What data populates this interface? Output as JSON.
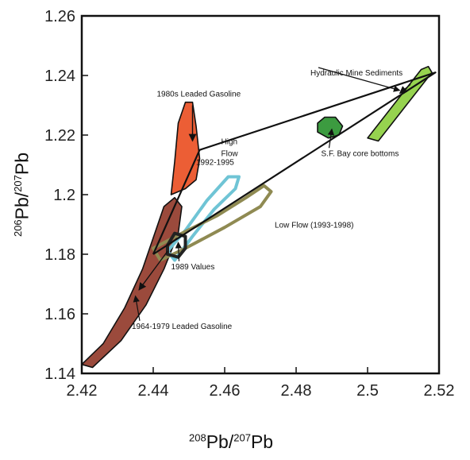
{
  "chart_data": {
    "type": "scatter",
    "xlabel": {
      "sup1": "208",
      "base1": "Pb/",
      "sup2": "207",
      "base2": "Pb"
    },
    "ylabel": {
      "sup1": "206",
      "base1": "Pb/",
      "sup2": "207",
      "base2": "Pb"
    },
    "xlim": [
      2.42,
      2.52
    ],
    "ylim": [
      1.14,
      1.26
    ],
    "xticks": [
      "2.42",
      "2.44",
      "2.46",
      "2.48",
      "2.5",
      "2.52"
    ],
    "yticks": [
      "1.14",
      "1.16",
      "1.18",
      "1.2",
      "1.22",
      "1.24",
      "1.26"
    ],
    "grid": false,
    "regions": [
      {
        "name": "1964-1979 Leaded Gasoline",
        "color": "#9b4a3c",
        "fill": true,
        "outline": [
          [
            2.42,
            1.143
          ],
          [
            2.426,
            1.15
          ],
          [
            2.432,
            1.162
          ],
          [
            2.437,
            1.175
          ],
          [
            2.441,
            1.189
          ],
          [
            2.443,
            1.196
          ],
          [
            2.446,
            1.199
          ],
          [
            2.448,
            1.196
          ],
          [
            2.447,
            1.187
          ],
          [
            2.443,
            1.175
          ],
          [
            2.438,
            1.163
          ],
          [
            2.431,
            1.151
          ],
          [
            2.423,
            1.142
          ],
          [
            2.42,
            1.143
          ]
        ]
      },
      {
        "name": "1980s Leaded Gasoline",
        "color": "#ec5e35",
        "fill": true,
        "outline": [
          [
            2.445,
            1.2
          ],
          [
            2.446,
            1.211
          ],
          [
            2.447,
            1.224
          ],
          [
            2.449,
            1.231
          ],
          [
            2.451,
            1.231
          ],
          [
            2.452,
            1.223
          ],
          [
            2.453,
            1.212
          ],
          [
            2.452,
            1.205
          ],
          [
            2.449,
            1.202
          ],
          [
            2.445,
            1.2
          ]
        ]
      },
      {
        "name": "S.F. Bay core bottoms",
        "color": "#3c9b40",
        "fill": true,
        "outline": [
          [
            2.486,
            1.224
          ],
          [
            2.488,
            1.226
          ],
          [
            2.491,
            1.226
          ],
          [
            2.493,
            1.223
          ],
          [
            2.492,
            1.22
          ],
          [
            2.489,
            1.219
          ],
          [
            2.486,
            1.221
          ],
          [
            2.486,
            1.224
          ]
        ]
      },
      {
        "name": "Hydraulic Mine Sediments",
        "color": "#96d34f",
        "fill": true,
        "outline": [
          [
            2.5,
            1.219
          ],
          [
            2.515,
            1.242
          ],
          [
            2.517,
            1.243
          ],
          [
            2.518,
            1.241
          ],
          [
            2.503,
            1.218
          ],
          [
            2.5,
            1.219
          ]
        ]
      },
      {
        "name": "High Flow 1992-1995",
        "color": "#6fc4d5",
        "fill": false,
        "outline": [
          [
            2.444,
            1.181
          ],
          [
            2.449,
            1.188
          ],
          [
            2.455,
            1.198
          ],
          [
            2.461,
            1.206
          ],
          [
            2.464,
            1.206
          ],
          [
            2.463,
            1.202
          ],
          [
            2.457,
            1.195
          ],
          [
            2.451,
            1.186
          ],
          [
            2.446,
            1.178
          ],
          [
            2.444,
            1.181
          ]
        ]
      },
      {
        "name": "Low Flow (1993-1998)",
        "color": "#8f8a52",
        "fill": false,
        "outline": [
          [
            2.44,
            1.182
          ],
          [
            2.448,
            1.187
          ],
          [
            2.458,
            1.193
          ],
          [
            2.466,
            1.199
          ],
          [
            2.471,
            1.203
          ],
          [
            2.473,
            1.201
          ],
          [
            2.47,
            1.196
          ],
          [
            2.46,
            1.189
          ],
          [
            2.449,
            1.182
          ],
          [
            2.442,
            1.178
          ],
          [
            2.44,
            1.182
          ]
        ]
      },
      {
        "name": "1989 Values",
        "color": "#222222",
        "fill": false,
        "outline": [
          [
            2.444,
            1.183
          ],
          [
            2.446,
            1.187
          ],
          [
            2.449,
            1.186
          ],
          [
            2.449,
            1.182
          ],
          [
            2.447,
            1.179
          ],
          [
            2.444,
            1.18
          ],
          [
            2.444,
            1.183
          ]
        ]
      }
    ],
    "mixing_lines": [
      [
        [
          2.44,
          1.18
        ],
        [
          2.453,
          1.215
        ],
        [
          2.519,
          1.241
        ],
        [
          2.44,
          1.18
        ]
      ]
    ],
    "trend_arrows": [
      [
        [
          2.451,
          1.23
        ],
        [
          2.451,
          1.218
        ]
      ],
      [
        [
          2.444,
          1.181
        ],
        [
          2.436,
          1.168
        ]
      ],
      [
        [
          2.512,
          1.237
        ],
        [
          2.509,
          1.234
        ]
      ]
    ],
    "annotations": [
      {
        "text": "1980s Leaded Gasoline",
        "pos": [
          2.441,
          1.233
        ],
        "target": null
      },
      {
        "text": "High",
        "pos": [
          2.459,
          1.217
        ],
        "target": null
      },
      {
        "text": "Flow",
        "pos": [
          2.459,
          1.213
        ],
        "target": null
      },
      {
        "text": "1992-1995",
        "pos": [
          2.452,
          1.21
        ],
        "target": null
      },
      {
        "text": "Hydraulic Mine Sediments",
        "pos": [
          2.484,
          1.24
        ],
        "target": [
          2.509,
          1.235
        ]
      },
      {
        "text": "S.F. Bay core bottoms",
        "pos": [
          2.487,
          1.213
        ],
        "target": [
          2.49,
          1.222
        ]
      },
      {
        "text": "Low Flow (1993-1998)",
        "pos": [
          2.474,
          1.189
        ],
        "target": null
      },
      {
        "text": "1989 Values",
        "pos": [
          2.445,
          1.175
        ],
        "target": [
          2.447,
          1.184
        ]
      },
      {
        "text": "1964-1979 Leaded Gasoline",
        "pos": [
          2.434,
          1.155
        ],
        "target": [
          2.435,
          1.166
        ]
      }
    ]
  }
}
